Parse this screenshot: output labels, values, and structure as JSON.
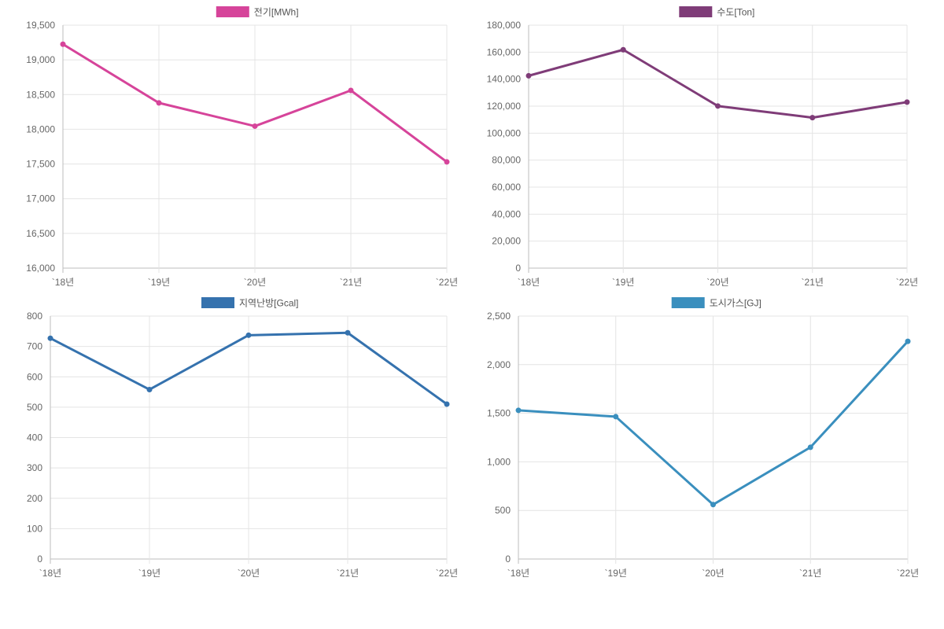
{
  "chart_data": [
    {
      "type": "line",
      "categories": [
        "`18년",
        "`19년",
        "`20년",
        "`21년",
        "`22년"
      ],
      "series": [
        {
          "name": "전기[MWh]",
          "values": [
            19225,
            18380,
            18045,
            18560,
            17530
          ],
          "color": "#d6449a"
        }
      ],
      "yticks": [
        "16,000",
        "16,500",
        "17,000",
        "17,500",
        "18,000",
        "18,500",
        "19,000",
        "19,500"
      ],
      "ylim": [
        16000,
        19500
      ],
      "grid": true,
      "legend": "top-center"
    },
    {
      "type": "line",
      "categories": [
        "`18년",
        "`19년",
        "`20년",
        "`21년",
        "`22년"
      ],
      "series": [
        {
          "name": "수도[Ton]",
          "values": [
            142500,
            161800,
            120100,
            111500,
            123000
          ],
          "color": "#7f3c78"
        }
      ],
      "yticks": [
        "0",
        "20,000",
        "40,000",
        "60,000",
        "80,000",
        "100,000",
        "120,000",
        "140,000",
        "160,000",
        "180,000"
      ],
      "ylim": [
        0,
        180000
      ],
      "grid": true,
      "legend": "top-center"
    },
    {
      "type": "line",
      "categories": [
        "`18년",
        "`19년",
        "`20년",
        "`21년",
        "`22년"
      ],
      "series": [
        {
          "name": "지역난방[Gcal]",
          "values": [
            727,
            558,
            737,
            745,
            510
          ],
          "color": "#3572ae"
        }
      ],
      "yticks": [
        "0",
        "100",
        "200",
        "300",
        "400",
        "500",
        "600",
        "700",
        "800"
      ],
      "ylim": [
        0,
        800
      ],
      "grid": true,
      "legend": "top-center"
    },
    {
      "type": "line",
      "categories": [
        "`18년",
        "`19년",
        "`20년",
        "`21년",
        "`22년"
      ],
      "series": [
        {
          "name": "도시가스[GJ]",
          "values": [
            1530,
            1465,
            560,
            1150,
            2240
          ],
          "color": "#3a8fbe"
        }
      ],
      "yticks": [
        "0",
        "500",
        "1,000",
        "1,500",
        "2,000",
        "2,500"
      ],
      "ylim": [
        0,
        2500
      ],
      "grid": true,
      "legend": "top-center"
    }
  ]
}
